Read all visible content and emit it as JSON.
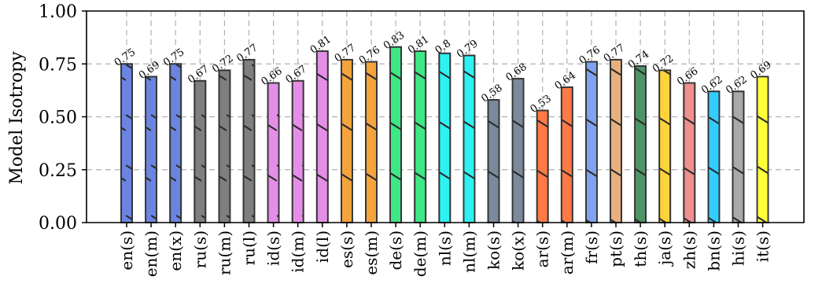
{
  "chart_data": {
    "type": "bar",
    "title": "",
    "xlabel": "",
    "ylabel": "Model Isotropy",
    "ylim": [
      0,
      1
    ],
    "yticks": [
      "0.00",
      "0.25",
      "0.50",
      "0.75",
      "1.00"
    ],
    "yticks_values": [
      0,
      0.25,
      0.5,
      0.75,
      1.0
    ],
    "grid": true,
    "bar_hatch": "diagonal",
    "categories": [
      "en(s)",
      "en(m)",
      "en(x)",
      "ru(s)",
      "ru(m)",
      "ru(l)",
      "id(s)",
      "id(m)",
      "id(l)",
      "es(s)",
      "es(m)",
      "de(s)",
      "de(m)",
      "nl(s)",
      "nl(m)",
      "ko(s)",
      "ko(x)",
      "ar(s)",
      "ar(m)",
      "fr(s)",
      "pt(s)",
      "th(s)",
      "ja(s)",
      "zh(s)",
      "bn(s)",
      "hi(s)",
      "it(s)"
    ],
    "values": [
      0.75,
      0.69,
      0.75,
      0.67,
      0.72,
      0.77,
      0.66,
      0.67,
      0.81,
      0.77,
      0.76,
      0.83,
      0.81,
      0.8,
      0.79,
      0.58,
      0.68,
      0.53,
      0.64,
      0.76,
      0.77,
      0.74,
      0.72,
      0.66,
      0.62,
      0.62,
      0.69
    ],
    "data_labels": [
      "0.75",
      "0.69",
      "0.75",
      "0.67",
      "0.72",
      "0.77",
      "0.66",
      "0.67",
      "0.81",
      "0.77",
      "0.76",
      "0.83",
      "0.81",
      "0.8",
      "0.79",
      "0.58",
      "0.68",
      "0.53",
      "0.64",
      "0.76",
      "0.77",
      "0.74",
      "0.72",
      "0.66",
      "0.62",
      "0.62",
      "0.69"
    ],
    "colors": [
      "#6b84e0",
      "#6b84e0",
      "#6b84e0",
      "#7f7f7f",
      "#7f7f7f",
      "#7f7f7f",
      "#e58ee8",
      "#e58ee8",
      "#e58ee8",
      "#f5a33c",
      "#f5a33c",
      "#3ee885",
      "#3ee885",
      "#2ef2f2",
      "#2ef2f2",
      "#7b8a9b",
      "#7b8a9b",
      "#ff7a45",
      "#ff7a45",
      "#7fa3ee",
      "#e8b07f",
      "#4f9467",
      "#ffd43b",
      "#ef8f8f",
      "#33ccff",
      "#a9a9a9",
      "#ffff3a"
    ]
  }
}
